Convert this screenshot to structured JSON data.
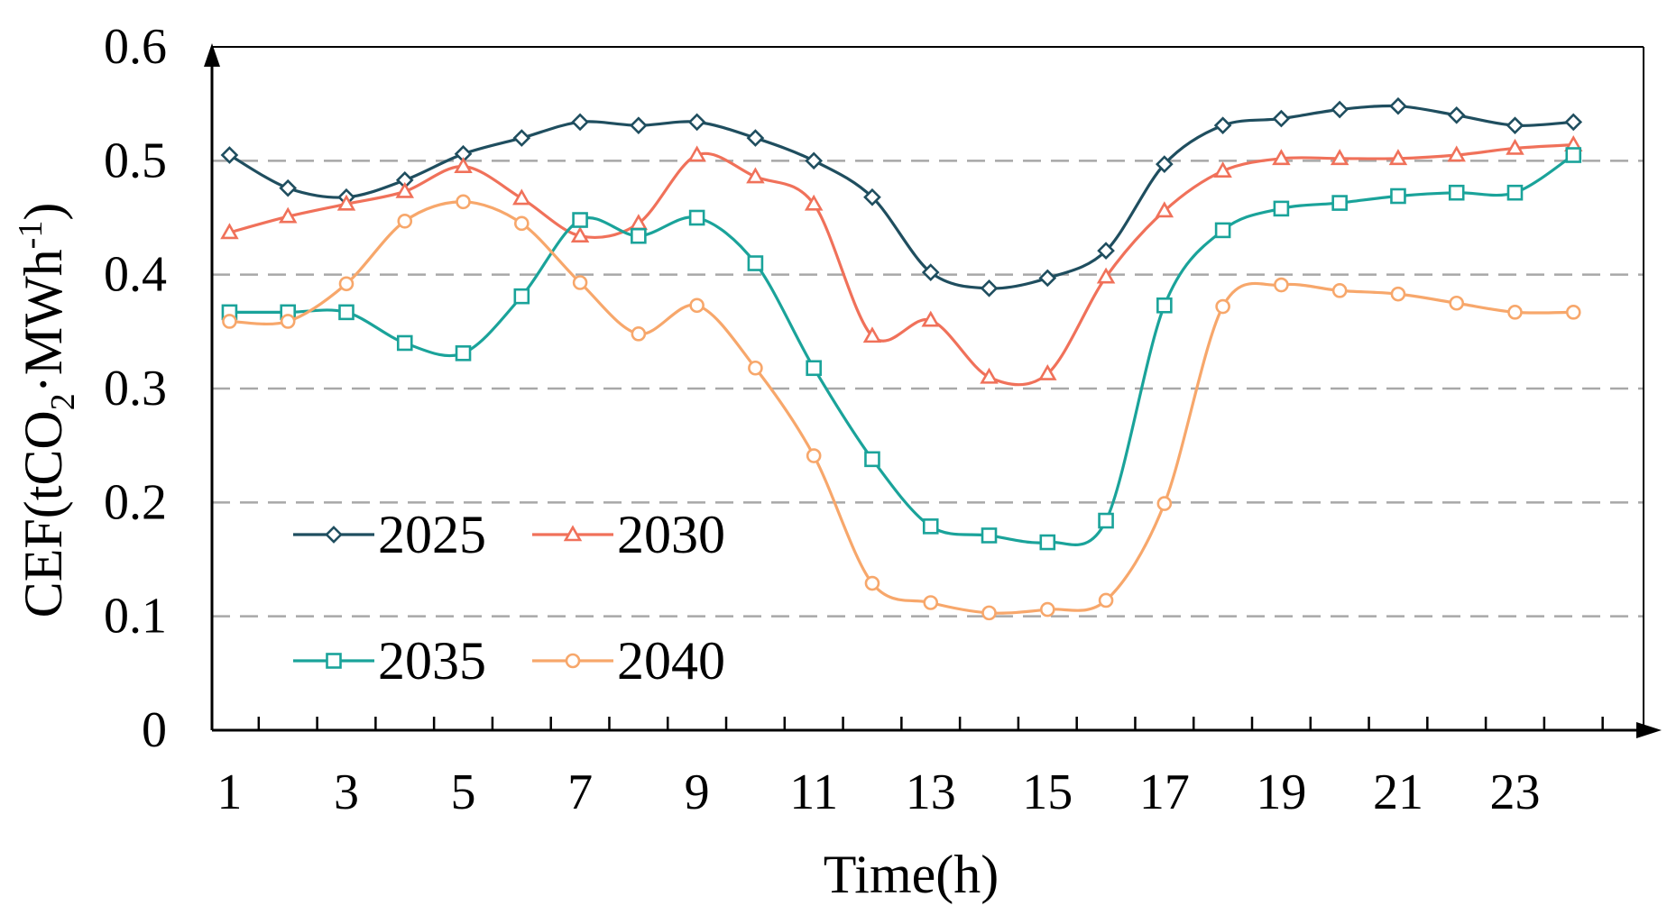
{
  "chart_data": {
    "type": "line",
    "title": "",
    "xlabel": "Time(h)",
    "ylabel": {
      "main": "CEF(tCO",
      "sub": "2",
      "mid": "·MWh",
      "sup": "-1",
      "end": ")"
    },
    "x": [
      1,
      2,
      3,
      4,
      5,
      6,
      7,
      8,
      9,
      10,
      11,
      12,
      13,
      14,
      15,
      16,
      17,
      18,
      19,
      20,
      21,
      22,
      23,
      24
    ],
    "x_tick_labels": [
      "1",
      "3",
      "5",
      "7",
      "9",
      "11",
      "13",
      "15",
      "17",
      "19",
      "21",
      "23"
    ],
    "y_tick_labels": [
      "0",
      "0.1",
      "0.2",
      "0.3",
      "0.4",
      "0.5",
      "0.6"
    ],
    "ylim": [
      0,
      0.6
    ],
    "xlim": [
      0.7,
      25.2
    ],
    "grid": "horizontal dashed",
    "legend_position": "bottom-left",
    "series": [
      {
        "name": "2025",
        "color": "#1f4e5f",
        "marker": "diamond",
        "values": [
          0.505,
          0.476,
          0.468,
          0.483,
          0.506,
          0.52,
          0.534,
          0.531,
          0.534,
          0.52,
          0.5,
          0.468,
          0.402,
          0.388,
          0.397,
          0.421,
          0.497,
          0.531,
          0.537,
          0.545,
          0.548,
          0.54,
          0.531,
          0.534
        ]
      },
      {
        "name": "2030",
        "color": "#f0715a",
        "marker": "triangle",
        "values": [
          0.437,
          0.451,
          0.462,
          0.473,
          0.495,
          0.467,
          0.434,
          0.445,
          0.505,
          0.486,
          0.462,
          0.346,
          0.36,
          0.31,
          0.313,
          0.398,
          0.456,
          0.491,
          0.502,
          0.502,
          0.502,
          0.505,
          0.511,
          0.514
        ]
      },
      {
        "name": "2035",
        "color": "#1aa39a",
        "marker": "square",
        "values": [
          0.367,
          0.367,
          0.367,
          0.34,
          0.331,
          0.381,
          0.448,
          0.434,
          0.45,
          0.41,
          0.318,
          0.238,
          0.179,
          0.171,
          0.165,
          0.184,
          0.373,
          0.439,
          0.458,
          0.463,
          0.469,
          0.472,
          0.472,
          0.505
        ]
      },
      {
        "name": "2040",
        "color": "#f7a76b",
        "marker": "circle",
        "values": [
          0.359,
          0.359,
          0.392,
          0.447,
          0.464,
          0.445,
          0.393,
          0.348,
          0.373,
          0.318,
          0.241,
          0.129,
          0.112,
          0.103,
          0.106,
          0.114,
          0.199,
          0.372,
          0.391,
          0.386,
          0.383,
          0.375,
          0.367,
          0.367
        ]
      }
    ]
  }
}
